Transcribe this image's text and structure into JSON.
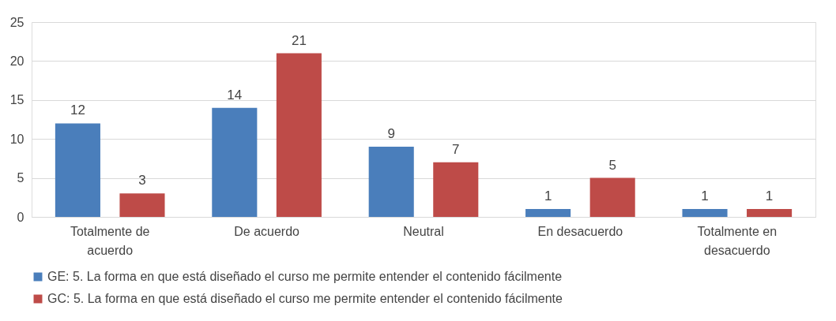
{
  "chart_data": {
    "type": "bar",
    "categories": [
      "Totalmente de acuerdo",
      "De acuerdo",
      "Neutral",
      "En desacuerdo",
      "Totalmente en desacuerdo"
    ],
    "series": [
      {
        "name": "GE: 5. La forma en que está diseñado el curso me permite entender el contenido fácilmente",
        "color": "#4a7ebb",
        "values": [
          12,
          14,
          9,
          1,
          1
        ]
      },
      {
        "name": "GC: 5. La forma en que está diseñado el curso me permite entender el contenido fácilmente",
        "color": "#be4b48",
        "values": [
          3,
          21,
          7,
          5,
          1
        ]
      }
    ],
    "ylim": [
      0,
      25
    ],
    "yticks": [
      0,
      5,
      10,
      15,
      20,
      25
    ],
    "grid": "y",
    "legend": "bottom",
    "data_labels": true
  }
}
